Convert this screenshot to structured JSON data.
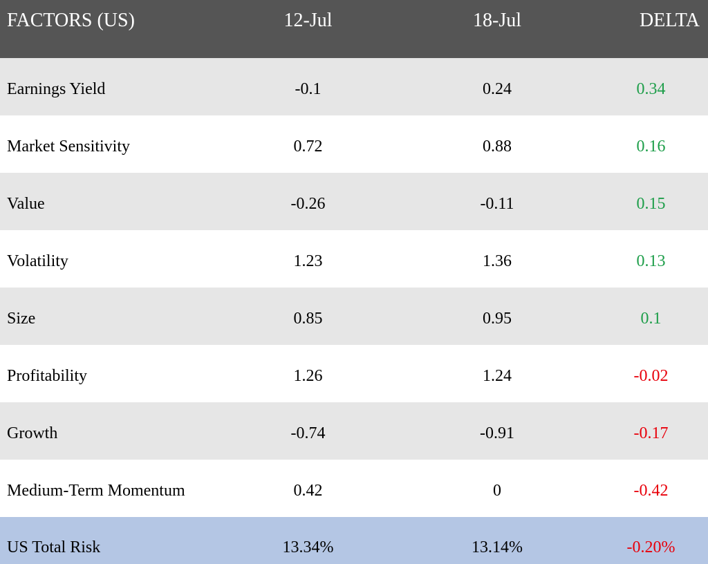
{
  "header": {
    "factor": "FACTORS (US)",
    "date1": "12-Jul",
    "date2": "18-Jul",
    "delta": "DELTA"
  },
  "rows": [
    {
      "factor": "Earnings Yield",
      "v1": "-0.1",
      "v2": "0.24",
      "delta": "0.34"
    },
    {
      "factor": "Market Sensitivity",
      "v1": "0.72",
      "v2": "0.88",
      "delta": "0.16"
    },
    {
      "factor": "Value",
      "v1": "-0.26",
      "v2": "-0.11",
      "delta": "0.15"
    },
    {
      "factor": "Volatility",
      "v1": "1.23",
      "v2": "1.36",
      "delta": "0.13"
    },
    {
      "factor": "Size",
      "v1": "0.85",
      "v2": "0.95",
      "delta": "0.1"
    },
    {
      "factor": "Profitability",
      "v1": "1.26",
      "v2": "1.24",
      "delta": "-0.02"
    },
    {
      "factor": "Growth",
      "v1": "-0.74",
      "v2": "-0.91",
      "delta": "-0.17"
    },
    {
      "factor": "Medium-Term Momentum",
      "v1": "0.42",
      "v2": "0",
      "delta": "-0.42"
    }
  ],
  "total": {
    "factor": "US Total Risk",
    "v1": "13.34%",
    "v2": "13.14%",
    "delta": "-0.20%"
  },
  "colors": {
    "header_bg": "#555555",
    "row_shade": "#e6e6e6",
    "total_bg": "#b4c6e4",
    "positive": "#1e9e4a",
    "negative": "#e8000b"
  }
}
